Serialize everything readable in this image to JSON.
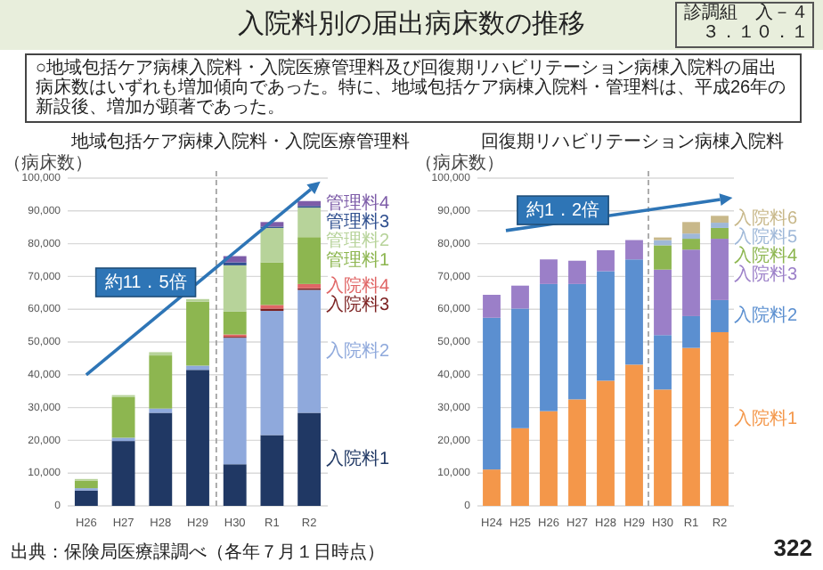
{
  "chart_data": [
    {
      "type": "other",
      "title": "入院料別の届出病床数の推移",
      "subtitle": "○地域包括ケア病棟入院料・入院医療管理料及び回復期リハビリテーション病棟入院料の届出病床数はいずれも増加傾向であった。特に、地域包括ケア病棟入院料・管理料は、平成26年の新設後、増加が顕著であった。",
      "annotations": [
        "診調組　入－４",
        "３．１０．１",
        "出典：保険局医療課調べ（各年７月１日時点）",
        "322"
      ]
    },
    {
      "type": "bar",
      "stacked": true,
      "title": "地域包括ケア病棟入院料・入院医療管理料",
      "ylabel": "（病床数）",
      "categories": [
        "H26",
        "H27",
        "H28",
        "H29",
        "H30",
        "R1",
        "R2"
      ],
      "ylim": [
        0,
        100000
      ],
      "yticks": [
        0,
        {
          "value": 10000,
          "label": "10,000"
        },
        {
          "value": 20000,
          "label": "20,000"
        },
        {
          "value": 30000,
          "label": "30,000"
        },
        {
          "value": 40000,
          "label": "40,000"
        },
        {
          "value": 50000,
          "label": "50,000"
        },
        {
          "value": 60000,
          "label": "60,000"
        },
        {
          "value": 70000,
          "label": "70,000"
        },
        {
          "value": 80000,
          "label": "80,000"
        },
        {
          "value": 90000,
          "label": "90,000"
        },
        {
          "value": 100000,
          "label": "100,000"
        }
      ],
      "grid": "y",
      "annotations": [
        "約11．5倍"
      ],
      "series": [
        {
          "name": "入院料1",
          "color": "#203864",
          "values": [
            4700,
            19800,
            28400,
            41500,
            12700,
            21600,
            28400
          ]
        },
        {
          "name": "入院料2",
          "color": "#8fa9dc",
          "values": [
            700,
            1000,
            1300,
            1300,
            38600,
            37900,
            37500
          ]
        },
        {
          "name": "入院料3",
          "color": "#7b1f1f",
          "values": [
            null,
            null,
            null,
            null,
            300,
            700,
            500
          ]
        },
        {
          "name": "入院料4",
          "color": "#e06666",
          "values": [
            null,
            null,
            null,
            null,
            700,
            1100,
            1300
          ]
        },
        {
          "name": "管理料1",
          "color": "#8db650",
          "values": [
            2300,
            12400,
            16200,
            19500,
            7000,
            13000,
            14300
          ]
        },
        {
          "name": "管理料2",
          "color": "#b7d39a",
          "values": [
            500,
            600,
            1000,
            800,
            14100,
            10500,
            9000
          ]
        },
        {
          "name": "管理料3",
          "color": "#2f4f8f",
          "values": [
            null,
            null,
            null,
            null,
            900,
            400,
            500
          ]
        },
        {
          "name": "管理料4",
          "color": "#7d5ca8",
          "values": [
            null,
            null,
            null,
            null,
            1900,
            1400,
            1500
          ]
        }
      ]
    },
    {
      "type": "bar",
      "stacked": true,
      "title": "回復期リハビリテーション病棟入院料",
      "ylabel": "（病床数）",
      "categories": [
        "H24",
        "H25",
        "H26",
        "H27",
        "H28",
        "H29",
        "H30",
        "R1",
        "R2"
      ],
      "ylim": [
        0,
        100000
      ],
      "yticks": [
        0,
        {
          "value": 10000,
          "label": "10,000"
        },
        {
          "value": 20000,
          "label": "20,000"
        },
        {
          "value": 30000,
          "label": "30,000"
        },
        {
          "value": 40000,
          "label": "40,000"
        },
        {
          "value": 50000,
          "label": "50,000"
        },
        {
          "value": 60000,
          "label": "60,000"
        },
        {
          "value": 70000,
          "label": "70,000"
        },
        {
          "value": 80000,
          "label": "80,000"
        },
        {
          "value": 90000,
          "label": "90,000"
        },
        {
          "value": 100000,
          "label": "100,000"
        }
      ],
      "grid": "y",
      "annotations": [
        "約1．2倍"
      ],
      "series": [
        {
          "name": "入院料1",
          "color": "#f4974a",
          "values": [
            11100,
            23700,
            28900,
            32500,
            38200,
            43100,
            35500,
            48200,
            53000
          ]
        },
        {
          "name": "入院料2",
          "color": "#5b8fd0",
          "values": [
            46300,
            36500,
            38800,
            35200,
            33400,
            32100,
            16600,
            9700,
            9800
          ]
        },
        {
          "name": "入院料3",
          "color": "#9b7fc8",
          "values": [
            7000,
            7000,
            7500,
            7100,
            6400,
            5900,
            20000,
            20300,
            18700
          ]
        },
        {
          "name": "入院料4",
          "color": "#8db650",
          "values": [
            null,
            null,
            null,
            null,
            null,
            null,
            7400,
            3300,
            3300
          ]
        },
        {
          "name": "入院料5",
          "color": "#9fb8d8",
          "values": [
            null,
            null,
            null,
            null,
            null,
            null,
            1600,
            1600,
            1600
          ]
        },
        {
          "name": "入院料6",
          "color": "#c8b88a",
          "values": [
            null,
            null,
            null,
            null,
            null,
            null,
            800,
            3500,
            2100
          ]
        }
      ]
    }
  ]
}
